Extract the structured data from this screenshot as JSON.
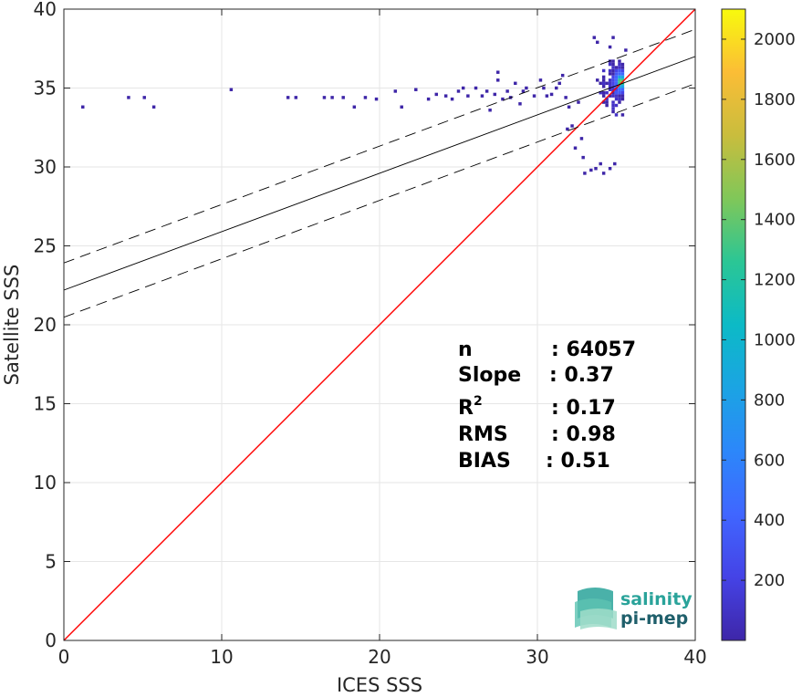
{
  "chart_data": {
    "type": "heatmap",
    "title": "",
    "xlabel": "ICES SSS",
    "ylabel": "Satellite SSS",
    "xlim": [
      0,
      40
    ],
    "ylim": [
      0,
      40
    ],
    "x_ticks": [
      "0",
      "10",
      "20",
      "30",
      "40"
    ],
    "y_ticks": [
      "0",
      "5",
      "10",
      "15",
      "20",
      "25",
      "30",
      "35",
      "40"
    ],
    "grid": true,
    "colormap": "parula",
    "colorbar": {
      "min": 0,
      "max": 2100,
      "ticks": [
        "200",
        "400",
        "600",
        "800",
        "1000",
        "1200",
        "1400",
        "1600",
        "1800",
        "2000"
      ]
    },
    "one_to_one_line": {
      "color": "#ff0000",
      "x": [
        0,
        40
      ],
      "y": [
        0,
        40
      ]
    },
    "fit_line": {
      "color": "#000000",
      "intercept": 22.2,
      "slope": 0.37
    },
    "fit_band_offset": 1.72,
    "density_core": {
      "x": [
        33.2,
        35.6
      ],
      "y": [
        32.5,
        36.9
      ],
      "peak_x": 35.3,
      "peak_y": 35.4
    },
    "sparse_points": [
      [
        1.2,
        33.8
      ],
      [
        4.1,
        34.4
      ],
      [
        5.1,
        34.4
      ],
      [
        5.7,
        33.8
      ],
      [
        10.6,
        34.9
      ],
      [
        14.2,
        34.4
      ],
      [
        14.7,
        34.4
      ],
      [
        16.5,
        34.4
      ],
      [
        17.0,
        34.4
      ],
      [
        17.7,
        34.4
      ],
      [
        18.4,
        33.8
      ],
      [
        19.1,
        34.4
      ],
      [
        19.8,
        34.3
      ],
      [
        21.0,
        34.8
      ],
      [
        21.4,
        33.8
      ],
      [
        22.3,
        34.9
      ],
      [
        23.1,
        34.3
      ],
      [
        23.6,
        34.6
      ],
      [
        24.2,
        34.5
      ],
      [
        24.6,
        34.3
      ],
      [
        25.0,
        34.8
      ],
      [
        25.3,
        35.0
      ],
      [
        25.6,
        34.5
      ],
      [
        26.1,
        35.0
      ],
      [
        26.5,
        34.5
      ],
      [
        26.8,
        34.8
      ],
      [
        27.0,
        33.6
      ],
      [
        27.3,
        34.6
      ],
      [
        27.5,
        35.5
      ],
      [
        27.5,
        36.0
      ],
      [
        27.8,
        34.3
      ],
      [
        28.1,
        34.8
      ],
      [
        28.3,
        34.4
      ],
      [
        28.6,
        35.3
      ],
      [
        28.9,
        34.0
      ],
      [
        29.1,
        34.8
      ],
      [
        29.3,
        35.0
      ],
      [
        29.8,
        34.5
      ],
      [
        30.2,
        35.5
      ],
      [
        30.4,
        35.0
      ],
      [
        30.6,
        34.5
      ],
      [
        30.9,
        34.6
      ],
      [
        31.2,
        35.0
      ],
      [
        31.4,
        35.3
      ],
      [
        31.6,
        35.8
      ],
      [
        31.8,
        34.4
      ],
      [
        32.0,
        33.8
      ],
      [
        32.2,
        32.6
      ],
      [
        32.6,
        34.1
      ],
      [
        32.8,
        31.8
      ],
      [
        33.0,
        29.6
      ],
      [
        33.4,
        29.8
      ],
      [
        33.7,
        29.9
      ],
      [
        34.0,
        30.2
      ],
      [
        34.2,
        29.6
      ],
      [
        34.6,
        29.9
      ],
      [
        34.9,
        30.2
      ],
      [
        33.6,
        38.2
      ],
      [
        33.8,
        37.9
      ],
      [
        34.6,
        37.6
      ],
      [
        34.8,
        38.2
      ],
      [
        35.6,
        37.4
      ],
      [
        32.4,
        31.2
      ],
      [
        32.9,
        30.6
      ],
      [
        31.9,
        32.4
      ]
    ],
    "statistics": {
      "n": "64057",
      "slope": "0.37",
      "r2": "0.17",
      "rms": "0.98",
      "bias": "0.51"
    },
    "stat_labels": {
      "n": "n",
      "slope": "Slope",
      "r2_base": "R",
      "r2_sup": "2",
      "rms": "RMS",
      "bias": "BIAS"
    },
    "logo": {
      "line1": "salinity",
      "line2": "pi-mep"
    }
  }
}
